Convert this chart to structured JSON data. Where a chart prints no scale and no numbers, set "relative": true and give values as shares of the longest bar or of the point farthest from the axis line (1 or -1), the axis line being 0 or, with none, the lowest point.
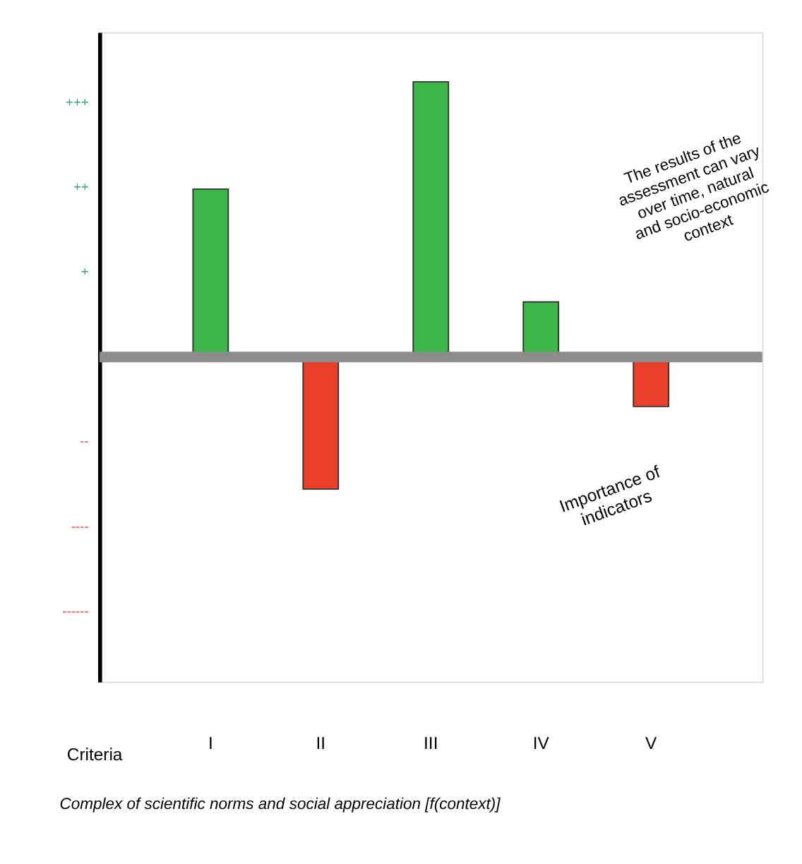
{
  "chart_data": {
    "type": "bar",
    "categories": [
      "I",
      "II",
      "III",
      "IV",
      "V"
    ],
    "values": [
      0.61,
      -0.48,
      1,
      0.2,
      -0.18
    ],
    "relative": true,
    "colors": [
      "#3cb54a",
      "#e8402a",
      "#3cb54a",
      "#3cb54a",
      "#e8402a"
    ],
    "xlabel": "Criteria",
    "ref_lines": [
      {
        "axis": "y",
        "value": 0,
        "color": "#8c8c8c"
      }
    ],
    "annotations": [
      "+++",
      "++",
      "+",
      "--",
      "----",
      "------",
      "The results of the assessment can vary over time, natural and socio-economic context",
      "Importance of indicators",
      "Complex of scientific norms and social appreciation [f(context)]"
    ],
    "grid": false
  }
}
